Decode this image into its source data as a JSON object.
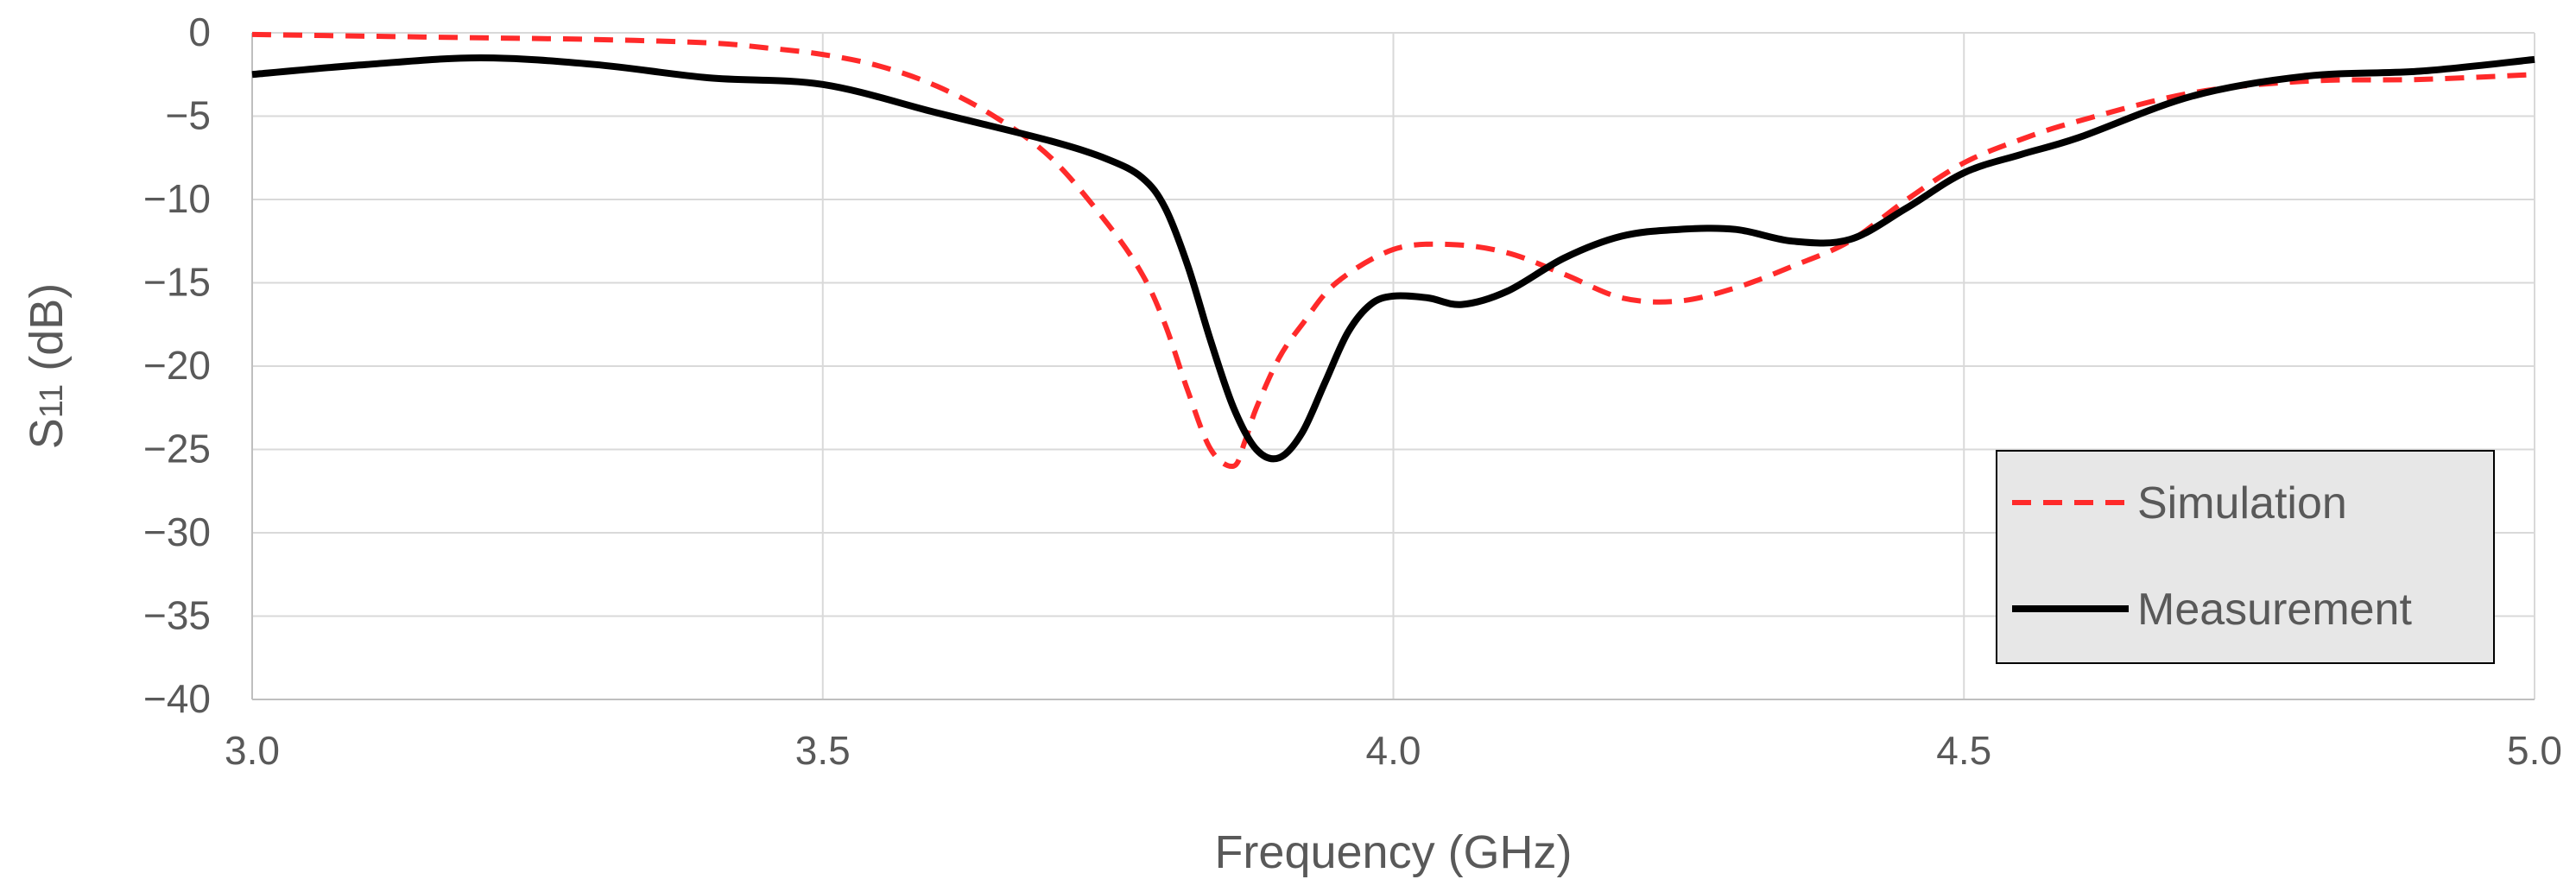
{
  "chart_data": {
    "type": "line",
    "title": "",
    "xlabel": "Frequency (GHz)",
    "ylabel": {
      "main": "S",
      "subscript": "11",
      "unit": " (dB)"
    },
    "xlim": [
      3.0,
      5.0
    ],
    "ylim": [
      -40,
      0
    ],
    "xticks": [
      3.0,
      3.5,
      4.0,
      4.5,
      5.0
    ],
    "xtick_labels": [
      "3.0",
      "3.5",
      "4.0",
      "4.5",
      "5.0"
    ],
    "yticks": [
      0,
      -5,
      -10,
      -15,
      -20,
      -25,
      -30,
      -35,
      -40
    ],
    "ytick_labels": [
      "0",
      "−5",
      "−10",
      "−15",
      "−20",
      "−25",
      "−30",
      "−35",
      "−40"
    ],
    "grid": true,
    "legend_position": "bottom-right",
    "series": [
      {
        "name": "Simulation",
        "color": "#ff2a2a",
        "style": "dashed",
        "x": [
          3.0,
          3.1,
          3.2,
          3.3,
          3.4,
          3.45,
          3.5,
          3.55,
          3.6,
          3.65,
          3.7,
          3.75,
          3.78,
          3.8,
          3.82,
          3.84,
          3.86,
          3.87,
          3.88,
          3.9,
          3.92,
          3.95,
          4.0,
          4.05,
          4.1,
          4.15,
          4.2,
          4.25,
          4.3,
          4.35,
          4.4,
          4.45,
          4.5,
          4.55,
          4.6,
          4.7,
          4.8,
          4.9,
          5.0
        ],
        "y": [
          -0.1,
          -0.2,
          -0.3,
          -0.4,
          -0.6,
          -0.9,
          -1.3,
          -2.0,
          -3.2,
          -5.0,
          -7.5,
          -11.5,
          -14.5,
          -17.5,
          -21.5,
          -25.0,
          -26.0,
          -24.5,
          -22.5,
          -19.5,
          -17.5,
          -15.0,
          -13.0,
          -12.7,
          -13.2,
          -14.5,
          -15.9,
          -16.1,
          -15.3,
          -14.0,
          -12.5,
          -10.0,
          -7.8,
          -6.4,
          -5.3,
          -3.6,
          -2.9,
          -2.8,
          -2.5
        ]
      },
      {
        "name": "Measurement",
        "color": "#000000",
        "style": "solid",
        "x": [
          3.0,
          3.1,
          3.2,
          3.3,
          3.4,
          3.5,
          3.6,
          3.7,
          3.75,
          3.78,
          3.8,
          3.82,
          3.84,
          3.86,
          3.88,
          3.9,
          3.92,
          3.94,
          3.96,
          3.98,
          4.0,
          4.03,
          4.06,
          4.1,
          4.15,
          4.2,
          4.25,
          4.3,
          4.35,
          4.4,
          4.45,
          4.5,
          4.55,
          4.6,
          4.7,
          4.8,
          4.9,
          5.0
        ],
        "y": [
          -2.5,
          -1.9,
          -1.5,
          -1.9,
          -2.7,
          -3.1,
          -4.8,
          -6.5,
          -7.6,
          -8.7,
          -10.5,
          -14.0,
          -18.5,
          -22.5,
          -25.0,
          -25.5,
          -24.0,
          -21.0,
          -18.0,
          -16.3,
          -15.8,
          -15.9,
          -16.3,
          -15.5,
          -13.5,
          -12.2,
          -11.8,
          -11.8,
          -12.5,
          -12.4,
          -10.5,
          -8.4,
          -7.3,
          -6.3,
          -3.8,
          -2.6,
          -2.3,
          -1.6
        ]
      }
    ]
  }
}
